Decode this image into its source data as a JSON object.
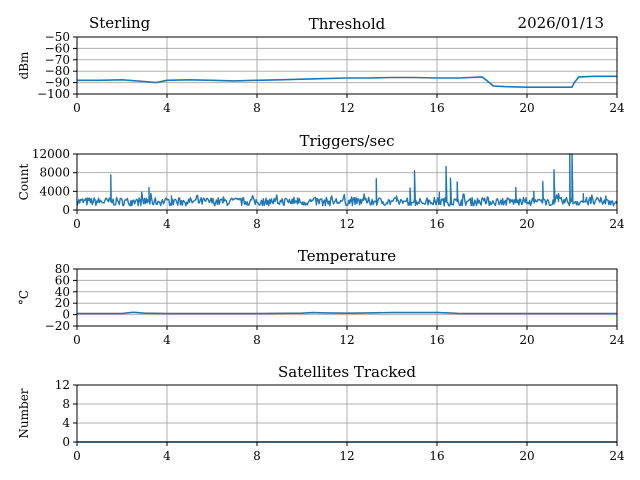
{
  "header": {
    "station": "Sterling",
    "date": "2026/01/13"
  },
  "style": {
    "line_color": "#1f77b4",
    "grid_color": "#b0b0b0"
  },
  "chart_data": [
    {
      "type": "line",
      "title": "Threshold",
      "xlabel": "",
      "ylabel": "dBm",
      "xlim": [
        0,
        24
      ],
      "ylim": [
        -100,
        -50
      ],
      "xticks": [
        0,
        4,
        8,
        12,
        16,
        20,
        24
      ],
      "yticks": [
        -100,
        -90,
        -80,
        -70,
        -60,
        -50
      ],
      "ytick_labels": [
        "−100",
        "−90",
        "−80",
        "−70",
        "−60",
        "−50"
      ],
      "grid": true,
      "series": [
        {
          "x": [
            0,
            1,
            2,
            3,
            3.5,
            4,
            5,
            6,
            7,
            8,
            9,
            10,
            11,
            12,
            13,
            14,
            15,
            16,
            17,
            18,
            18.2,
            18.5,
            19,
            20,
            21,
            22,
            22.1,
            22.3,
            23,
            24
          ],
          "y": [
            -88,
            -88,
            -87.5,
            -89,
            -90,
            -88,
            -87.5,
            -88,
            -88.5,
            -88,
            -87.5,
            -87,
            -86.5,
            -86,
            -86,
            -85.5,
            -85.5,
            -86,
            -86,
            -85,
            -88,
            -93,
            -93.5,
            -94,
            -94,
            -94,
            -90,
            -85,
            -84.5,
            -84.5
          ]
        }
      ]
    },
    {
      "type": "line",
      "title": "Triggers/sec",
      "xlabel": "",
      "ylabel": "Count",
      "xlim": [
        0,
        24
      ],
      "ylim": [
        0,
        12000
      ],
      "xticks": [
        0,
        4,
        8,
        12,
        16,
        20,
        24
      ],
      "yticks": [
        0,
        4000,
        8000,
        12000
      ],
      "ytick_labels": [
        "0",
        "4000",
        "8000",
        "12000"
      ],
      "grid": true,
      "series": [
        {
          "baseline": 1800,
          "spikes": [
            [
              1.5,
              7500
            ],
            [
              3.2,
              4800
            ],
            [
              4.2,
              3000
            ],
            [
              6.5,
              2800
            ],
            [
              9.8,
              2600
            ],
            [
              12.2,
              2800
            ],
            [
              13.3,
              6700
            ],
            [
              14.2,
              3000
            ],
            [
              14.8,
              4700
            ],
            [
              15.0,
              8400
            ],
            [
              16.1,
              3800
            ],
            [
              16.4,
              9300
            ],
            [
              16.6,
              6800
            ],
            [
              16.9,
              6000
            ],
            [
              19.5,
              4800
            ],
            [
              20.3,
              4000
            ],
            [
              20.7,
              6100
            ],
            [
              21.2,
              8600
            ],
            [
              21.4,
              3500
            ],
            [
              21.9,
              12000
            ],
            [
              22.0,
              12000
            ],
            [
              22.5,
              3500
            ],
            [
              23.5,
              3000
            ]
          ]
        }
      ]
    },
    {
      "type": "line",
      "title": "Temperature",
      "xlabel": "",
      "ylabel": "°C",
      "xlim": [
        0,
        24
      ],
      "ylim": [
        -20,
        80
      ],
      "xticks": [
        0,
        4,
        8,
        12,
        16,
        20,
        24
      ],
      "yticks": [
        -20,
        0,
        20,
        40,
        60,
        80
      ],
      "ytick_labels": [
        "−20",
        "0",
        "20",
        "40",
        "60",
        "80"
      ],
      "grid": true,
      "series": [
        {
          "x": [
            0,
            2,
            2.5,
            3,
            4,
            8,
            10,
            10.5,
            11,
            12,
            13,
            14,
            16,
            16.5,
            17,
            20,
            24
          ],
          "y": [
            2,
            2,
            4,
            2.5,
            2,
            2,
            2.5,
            3.5,
            3,
            2.5,
            3,
            3.5,
            3.5,
            3,
            2,
            2,
            2
          ]
        }
      ]
    },
    {
      "type": "line",
      "title": "Satellites Tracked",
      "xlabel": "",
      "ylabel": "Number",
      "xlim": [
        0,
        24
      ],
      "ylim": [
        0,
        12
      ],
      "xticks": [
        0,
        4,
        8,
        12,
        16,
        20,
        24
      ],
      "yticks": [
        0,
        4,
        8,
        12
      ],
      "ytick_labels": [
        "0",
        "4",
        "8",
        "12"
      ],
      "grid": true,
      "series": [
        {
          "x": [
            0,
            24
          ],
          "y": [
            0,
            0
          ]
        }
      ]
    }
  ]
}
